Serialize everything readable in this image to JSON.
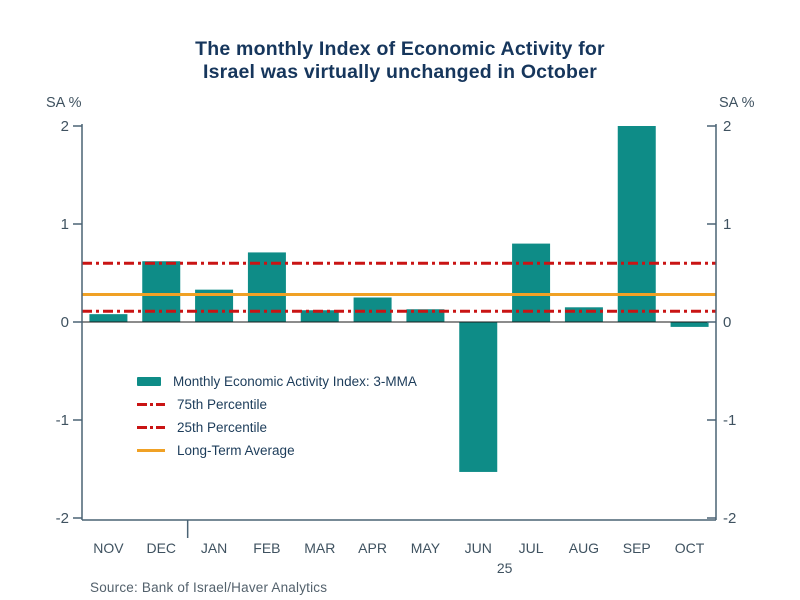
{
  "title": {
    "line1": "The monthly Index of Economic Activity for",
    "line2": "Israel was virtually unchanged in October"
  },
  "axis": {
    "left_unit": "SA %",
    "right_unit": "SA %",
    "ticks": [
      2,
      1,
      0,
      -1,
      -2
    ],
    "ylim": [
      -2,
      2
    ]
  },
  "chart_data": {
    "type": "bar",
    "title": "The monthly Index of Economic Activity for Israel was virtually unchanged in October",
    "categories": [
      "NOV",
      "DEC",
      "JAN",
      "FEB",
      "MAR",
      "APR",
      "MAY",
      "JUN",
      "JUL",
      "AUG",
      "SEP",
      "OCT"
    ],
    "values": [
      0.08,
      0.62,
      0.33,
      0.71,
      0.12,
      0.25,
      0.13,
      -1.53,
      0.8,
      0.15,
      2.0,
      -0.05
    ],
    "series_name": "Monthly Economic Activity Index: 3-MMA",
    "ylabel": "SA %",
    "ylim": [
      -2,
      2
    ],
    "yticks": [
      2,
      1,
      0,
      -1,
      -2
    ],
    "grid": false,
    "legend_position": "inside-left",
    "year_label": "25",
    "year_break_after": "DEC",
    "reference_lines": [
      {
        "label": "75th Percentile",
        "value": 0.6,
        "style": "dash-dot",
        "color": "#c91414"
      },
      {
        "label": "25th Percentile",
        "value": 0.11,
        "style": "dash-dot",
        "color": "#c91414"
      },
      {
        "label": "Long-Term Average",
        "value": 0.28,
        "style": "solid",
        "color": "#f0a125"
      }
    ],
    "bar_color": "#0e8c87"
  },
  "legend": {
    "items": [
      {
        "label": "Monthly Economic Activity Index: 3-MMA",
        "swatch": "bar-teal"
      },
      {
        "label": "75th Percentile",
        "swatch": "line-red-dashdot"
      },
      {
        "label": "25th Percentile",
        "swatch": "line-red-dashdot"
      },
      {
        "label": "Long-Term Average",
        "swatch": "line-orange-solid"
      }
    ]
  },
  "source": "Source:  Bank of Israel/Haver Analytics",
  "colors": {
    "bar": "#0e8c87",
    "percentile_line": "#c91414",
    "average_line": "#f0a125",
    "title_text": "#16365c",
    "axis_text": "#3f5260",
    "axis_line": "#4a6374",
    "zero_line": "#1a1a1a",
    "source_text": "#53616c",
    "background": "#ffffff"
  }
}
